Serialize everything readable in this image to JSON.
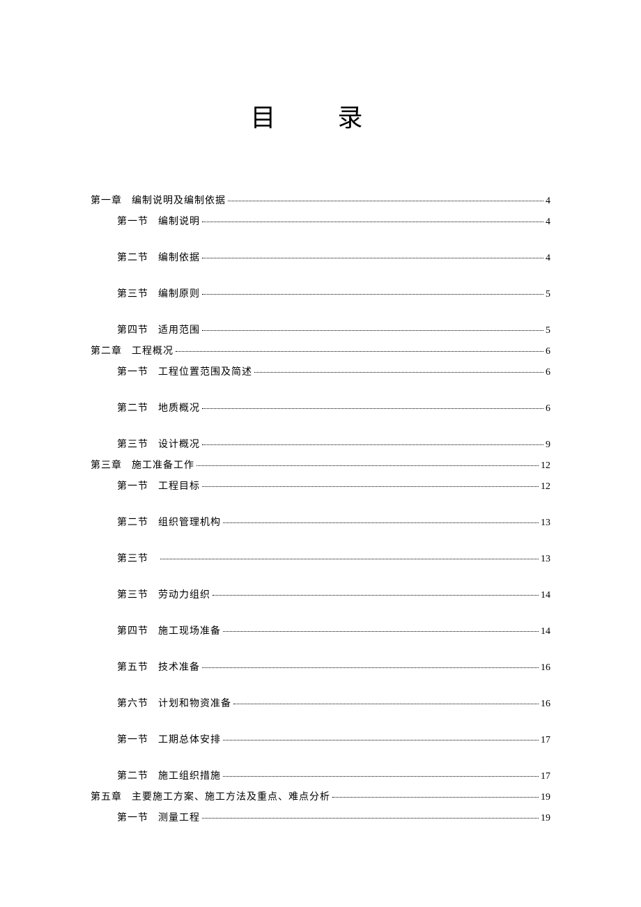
{
  "title": "目  录",
  "entries": [
    {
      "type": "chapter",
      "num": "第一章",
      "text": "编制说明及编制依据",
      "page": "4"
    },
    {
      "type": "section",
      "num": "第一节",
      "text": "编制说明",
      "page": "4"
    },
    {
      "type": "section",
      "num": "第二节",
      "text": "编制依据",
      "page": "4"
    },
    {
      "type": "section",
      "num": "第三节",
      "text": "编制原则",
      "page": "5"
    },
    {
      "type": "section-tight",
      "num": "第四节",
      "text": "适用范围",
      "page": "5"
    },
    {
      "type": "chapter",
      "num": "第二章",
      "text": "工程概况",
      "page": "6"
    },
    {
      "type": "section",
      "num": "第一节",
      "text": "工程位置范围及简述",
      "page": "6"
    },
    {
      "type": "section",
      "num": "第二节",
      "text": "地质概况",
      "page": "6"
    },
    {
      "type": "section-tight",
      "num": "第三节",
      "text": "设计概况",
      "page": "9"
    },
    {
      "type": "chapter",
      "num": "第三章",
      "text": "施工准备工作",
      "page": "12"
    },
    {
      "type": "section",
      "num": "第一节",
      "text": "工程目标",
      "page": "12"
    },
    {
      "type": "section",
      "num": "第二节",
      "text": "组织管理机构",
      "page": "13"
    },
    {
      "type": "section",
      "num": "第三节",
      "text": "",
      "page": "13"
    },
    {
      "type": "section",
      "num": "第三节",
      "text": "劳动力组织",
      "page": "14"
    },
    {
      "type": "section",
      "num": "第四节",
      "text": "施工现场准备",
      "page": "14"
    },
    {
      "type": "section",
      "num": "第五节",
      "text": "技术准备",
      "page": "16"
    },
    {
      "type": "section",
      "num": "第六节",
      "text": "计划和物资准备",
      "page": "16"
    },
    {
      "type": "section",
      "num": "第一节",
      "text": "工期总体安排",
      "page": "17"
    },
    {
      "type": "section-tight",
      "num": "第二节",
      "text": "施工组织措施",
      "page": "17"
    },
    {
      "type": "chapter",
      "num": "第五章",
      "text": "主要施工方案、施工方法及重点、难点分析",
      "page": "19"
    },
    {
      "type": "section",
      "num": "第一节",
      "text": "测量工程",
      "page": "19"
    }
  ],
  "colors": {
    "text": "#000000",
    "background": "#ffffff"
  },
  "typography": {
    "title_fontsize": 36,
    "entry_fontsize": 14,
    "font_family": "SimSun"
  }
}
